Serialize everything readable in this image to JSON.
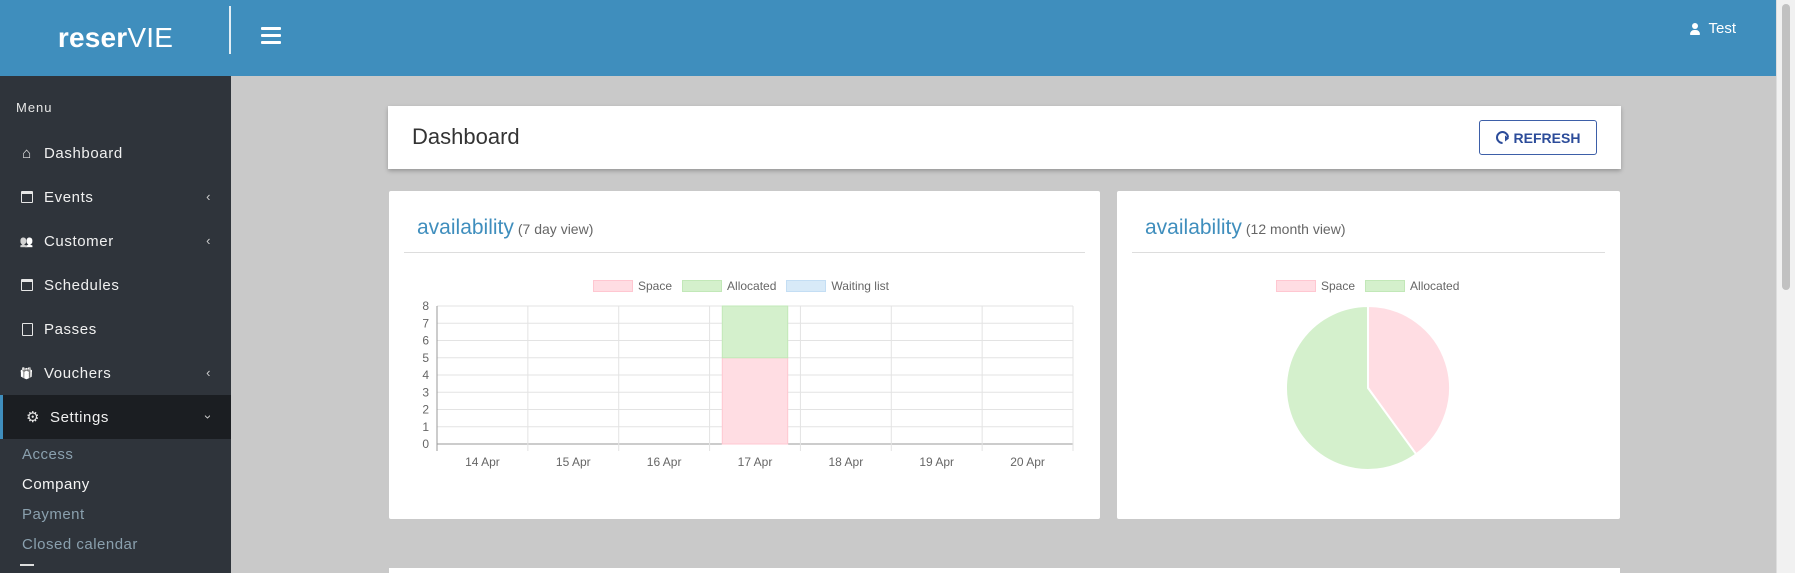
{
  "header": {
    "logo_bold": "reser",
    "logo_light": "VIE",
    "user_name": "Test"
  },
  "sidebar": {
    "menu_label": "Menu",
    "items": [
      {
        "label": "Dashboard",
        "icon": "home-icon"
      },
      {
        "label": "Events",
        "icon": "calendar-icon",
        "has_children": true
      },
      {
        "label": "Customer",
        "icon": "users-icon",
        "has_children": true
      },
      {
        "label": "Schedules",
        "icon": "calendar-icon"
      },
      {
        "label": "Passes",
        "icon": "file-icon"
      },
      {
        "label": "Vouchers",
        "icon": "gift-icon",
        "has_children": true
      },
      {
        "label": "Settings",
        "icon": "cogs-icon",
        "has_children": true,
        "expanded": true
      }
    ],
    "settings_sub": [
      {
        "label": "Access"
      },
      {
        "label": "Company",
        "current": true
      },
      {
        "label": "Payment"
      },
      {
        "label": "Closed calendar"
      }
    ]
  },
  "main": {
    "page_title": "Dashboard",
    "refresh_label": "REFRESH",
    "card1": {
      "title": "availability",
      "subtitle": "(7 day view)"
    },
    "card2": {
      "title": "availability",
      "subtitle": "(12 month view)"
    }
  },
  "colors": {
    "space": "#ffdde3",
    "allocated": "#d4f0cc",
    "waiting": "#d8eaf8",
    "accent": "#3f8ebd"
  },
  "chart_data": [
    {
      "type": "bar",
      "stacked": true,
      "categories": [
        "14 Apr",
        "15 Apr",
        "16 Apr",
        "17 Apr",
        "18 Apr",
        "19 Apr",
        "20 Apr"
      ],
      "series": [
        {
          "name": "Space",
          "values": [
            0,
            0,
            0,
            5,
            0,
            0,
            0
          ]
        },
        {
          "name": "Allocated",
          "values": [
            0,
            0,
            0,
            3,
            0,
            0,
            0
          ]
        },
        {
          "name": "Waiting list",
          "values": [
            0,
            0,
            0,
            0,
            0,
            0,
            0
          ]
        }
      ],
      "ylim": [
        0,
        8
      ],
      "yticks": [
        "0",
        "1",
        "2",
        "3",
        "4",
        "5",
        "6",
        "7",
        "8"
      ],
      "legend": "top",
      "grid": true
    },
    {
      "type": "pie",
      "labels": [
        "Space",
        "Allocated"
      ],
      "values": [
        40,
        60
      ],
      "legend": "top"
    }
  ]
}
